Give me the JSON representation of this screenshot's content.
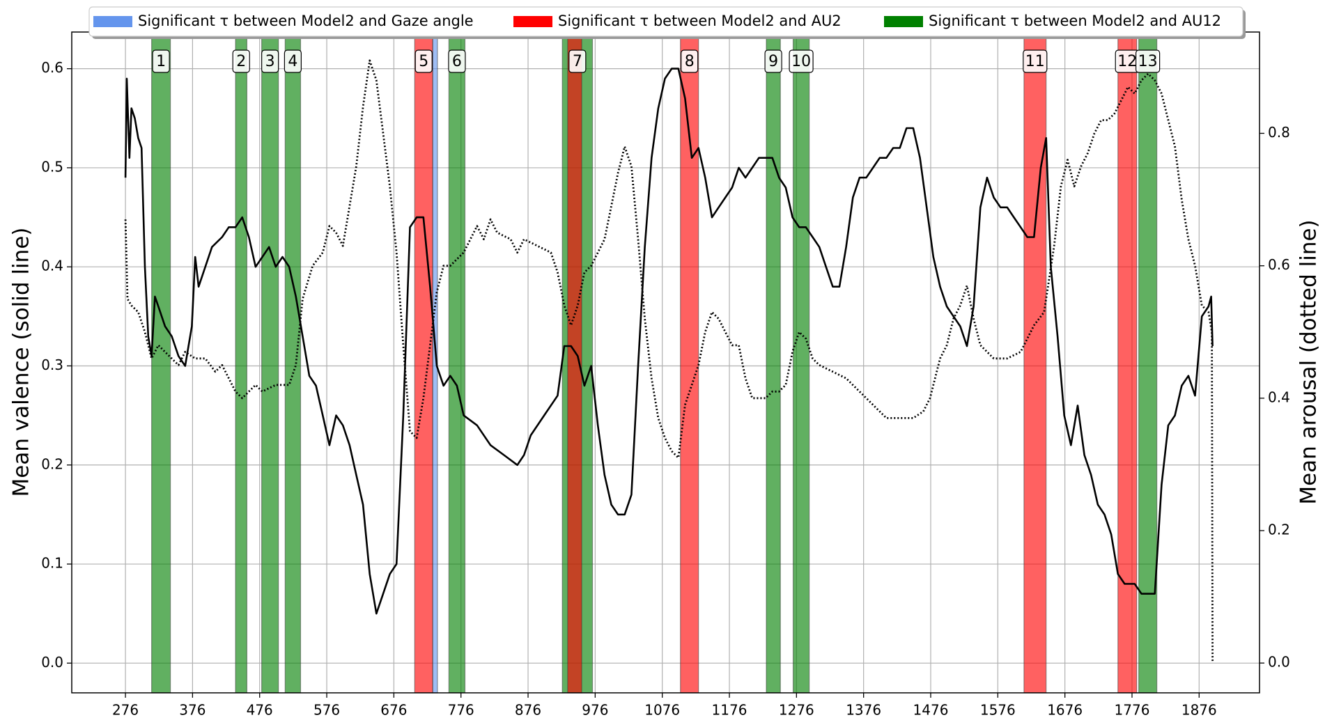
{
  "chart_data": {
    "type": "line",
    "ylabel": "Mean valence (solid line)",
    "y2label": "Mean arousal (dotted line)",
    "xlim": [
      196,
      1966
    ],
    "ylim": [
      -0.03,
      0.637
    ],
    "y2lim": [
      -0.045,
      0.953
    ],
    "xticks": [
      276,
      376,
      476,
      576,
      676,
      776,
      876,
      976,
      1076,
      1176,
      1276,
      1376,
      1476,
      1576,
      1676,
      1776,
      1876
    ],
    "yticks": [
      {
        "value": 0,
        "label": "0.0"
      },
      0.1,
      0.2,
      0.3,
      0.4,
      0.5,
      0.6
    ],
    "y2ticks": [
      {
        "value": 0,
        "label": "0.0"
      },
      0.2,
      0.4,
      0.6,
      0.8
    ],
    "grid": true,
    "legend": [
      {
        "name": "Significant τ between Model2 and Gaze angle",
        "color": "#6495ed"
      },
      {
        "name": "Significant τ between Model2 and AU2",
        "color": "#ff0000"
      },
      {
        "name": "Significant τ between Model2 and AU12",
        "color": "#008000"
      }
    ],
    "legend_position": "top",
    "regions": [
      {
        "label": "1",
        "start": 315,
        "end": 343,
        "color": "#008000"
      },
      {
        "label": "2",
        "start": 440,
        "end": 457,
        "color": "#008000"
      },
      {
        "label": "3",
        "start": 479,
        "end": 504,
        "color": "#008000"
      },
      {
        "label": "4",
        "start": 514,
        "end": 537,
        "color": "#008000"
      },
      {
        "label": "5",
        "start": 707,
        "end": 734,
        "color": "#ff0000"
      },
      {
        "start": 734,
        "end": 741,
        "color": "#6495ed"
      },
      {
        "label": "6",
        "start": 758,
        "end": 782,
        "color": "#008000"
      },
      {
        "label": "7",
        "start": 927,
        "end": 972,
        "color": "#008000"
      },
      {
        "start": 935,
        "end": 956,
        "color": "#ff0000"
      },
      {
        "label": "8",
        "start": 1103,
        "end": 1130,
        "color": "#ff0000"
      },
      {
        "label": "9",
        "start": 1231,
        "end": 1252,
        "color": "#008000"
      },
      {
        "label": "10",
        "start": 1271,
        "end": 1295,
        "color": "#008000"
      },
      {
        "label": "11",
        "start": 1615,
        "end": 1648,
        "color": "#ff0000"
      },
      {
        "label": "12",
        "start": 1755,
        "end": 1783,
        "color": "#ff0000"
      },
      {
        "label": "13",
        "start": 1786,
        "end": 1813,
        "color": "#008000"
      }
    ],
    "series": [
      {
        "name": "Mean valence",
        "color": "#000000",
        "linestyle": "solid",
        "x": [
          276,
          278,
          282,
          285,
          290,
          295,
          300,
          305,
          310,
          315,
          320,
          325,
          335,
          345,
          355,
          365,
          370,
          375,
          380,
          385,
          395,
          405,
          420,
          430,
          440,
          450,
          460,
          470,
          480,
          490,
          500,
          510,
          520,
          530,
          540,
          550,
          560,
          570,
          580,
          590,
          600,
          610,
          620,
          630,
          640,
          650,
          660,
          670,
          680,
          690,
          700,
          710,
          720,
          730,
          740,
          750,
          760,
          770,
          780,
          800,
          820,
          840,
          860,
          870,
          880,
          900,
          920,
          930,
          940,
          950,
          960,
          970,
          980,
          990,
          1000,
          1010,
          1020,
          1030,
          1040,
          1050,
          1060,
          1070,
          1080,
          1090,
          1100,
          1110,
          1120,
          1130,
          1140,
          1150,
          1160,
          1170,
          1180,
          1190,
          1200,
          1210,
          1220,
          1230,
          1240,
          1250,
          1260,
          1270,
          1280,
          1290,
          1300,
          1310,
          1320,
          1330,
          1340,
          1350,
          1360,
          1370,
          1380,
          1390,
          1400,
          1410,
          1420,
          1430,
          1440,
          1450,
          1460,
          1470,
          1480,
          1490,
          1500,
          1510,
          1520,
          1530,
          1540,
          1550,
          1560,
          1570,
          1580,
          1590,
          1600,
          1610,
          1620,
          1630,
          1640,
          1648,
          1655,
          1665,
          1675,
          1685,
          1695,
          1705,
          1715,
          1725,
          1735,
          1745,
          1755,
          1765,
          1780,
          1790,
          1800,
          1810,
          1820,
          1830,
          1840,
          1850,
          1860,
          1870,
          1880,
          1890,
          1894,
          1896
        ],
        "values": [
          0.49,
          0.59,
          0.51,
          0.56,
          0.55,
          0.53,
          0.52,
          0.4,
          0.33,
          0.31,
          0.37,
          0.36,
          0.34,
          0.33,
          0.31,
          0.3,
          0.32,
          0.34,
          0.41,
          0.38,
          0.4,
          0.42,
          0.43,
          0.44,
          0.44,
          0.45,
          0.43,
          0.4,
          0.41,
          0.42,
          0.4,
          0.41,
          0.4,
          0.37,
          0.33,
          0.29,
          0.28,
          0.25,
          0.22,
          0.25,
          0.24,
          0.22,
          0.19,
          0.16,
          0.09,
          0.05,
          0.07,
          0.09,
          0.1,
          0.25,
          0.44,
          0.45,
          0.45,
          0.38,
          0.3,
          0.28,
          0.29,
          0.28,
          0.25,
          0.24,
          0.22,
          0.21,
          0.2,
          0.21,
          0.23,
          0.25,
          0.27,
          0.32,
          0.32,
          0.31,
          0.28,
          0.3,
          0.24,
          0.19,
          0.16,
          0.15,
          0.15,
          0.17,
          0.3,
          0.42,
          0.51,
          0.56,
          0.59,
          0.6,
          0.6,
          0.57,
          0.51,
          0.52,
          0.49,
          0.45,
          0.46,
          0.47,
          0.48,
          0.5,
          0.49,
          0.5,
          0.51,
          0.51,
          0.51,
          0.49,
          0.48,
          0.45,
          0.44,
          0.44,
          0.43,
          0.42,
          0.4,
          0.38,
          0.38,
          0.42,
          0.47,
          0.49,
          0.49,
          0.5,
          0.51,
          0.51,
          0.52,
          0.52,
          0.54,
          0.54,
          0.51,
          0.46,
          0.41,
          0.38,
          0.36,
          0.35,
          0.34,
          0.32,
          0.36,
          0.46,
          0.49,
          0.47,
          0.46,
          0.46,
          0.45,
          0.44,
          0.43,
          0.43,
          0.5,
          0.53,
          0.4,
          0.33,
          0.25,
          0.22,
          0.26,
          0.21,
          0.19,
          0.16,
          0.15,
          0.13,
          0.09,
          0.08,
          0.08,
          0.07,
          0.07,
          0.07,
          0.18,
          0.24,
          0.25,
          0.28,
          0.29,
          0.27,
          0.35,
          0.36,
          0.37,
          0.32
        ]
      },
      {
        "name": "Mean arousal",
        "color": "#000000",
        "linestyle": "dotted",
        "axis": "y2",
        "x": [
          276,
          279,
          285,
          295,
          305,
          315,
          325,
          335,
          345,
          355,
          365,
          380,
          395,
          410,
          420,
          430,
          440,
          450,
          460,
          470,
          480,
          500,
          520,
          530,
          540,
          555,
          570,
          580,
          590,
          600,
          610,
          620,
          630,
          640,
          650,
          660,
          670,
          680,
          690,
          700,
          710,
          720,
          730,
          740,
          750,
          760,
          770,
          780,
          790,
          800,
          810,
          820,
          830,
          850,
          860,
          870,
          890,
          910,
          920,
          930,
          940,
          950,
          960,
          970,
          980,
          990,
          1000,
          1010,
          1020,
          1030,
          1040,
          1050,
          1060,
          1070,
          1080,
          1090,
          1100,
          1110,
          1120,
          1130,
          1140,
          1150,
          1160,
          1170,
          1180,
          1190,
          1200,
          1210,
          1220,
          1230,
          1240,
          1250,
          1260,
          1270,
          1280,
          1290,
          1300,
          1310,
          1330,
          1350,
          1370,
          1390,
          1410,
          1430,
          1450,
          1465,
          1475,
          1490,
          1500,
          1510,
          1520,
          1530,
          1540,
          1550,
          1570,
          1590,
          1610,
          1620,
          1630,
          1645,
          1660,
          1670,
          1680,
          1690,
          1700,
          1710,
          1720,
          1730,
          1740,
          1750,
          1760,
          1770,
          1780,
          1790,
          1800,
          1810,
          1820,
          1830,
          1840,
          1850,
          1860,
          1870,
          1880,
          1890,
          1895,
          1896
        ],
        "values": [
          0.67,
          0.55,
          0.54,
          0.53,
          0.5,
          0.46,
          0.48,
          0.47,
          0.46,
          0.45,
          0.47,
          0.46,
          0.46,
          0.44,
          0.45,
          0.43,
          0.41,
          0.4,
          0.41,
          0.42,
          0.41,
          0.42,
          0.42,
          0.45,
          0.55,
          0.6,
          0.62,
          0.66,
          0.65,
          0.63,
          0.69,
          0.75,
          0.84,
          0.91,
          0.88,
          0.8,
          0.72,
          0.62,
          0.48,
          0.35,
          0.34,
          0.4,
          0.48,
          0.56,
          0.6,
          0.6,
          0.61,
          0.62,
          0.64,
          0.66,
          0.64,
          0.67,
          0.65,
          0.64,
          0.62,
          0.64,
          0.63,
          0.62,
          0.59,
          0.54,
          0.51,
          0.54,
          0.59,
          0.6,
          0.62,
          0.64,
          0.69,
          0.74,
          0.78,
          0.75,
          0.64,
          0.52,
          0.43,
          0.37,
          0.34,
          0.32,
          0.31,
          0.39,
          0.42,
          0.45,
          0.5,
          0.53,
          0.52,
          0.5,
          0.48,
          0.48,
          0.43,
          0.4,
          0.4,
          0.4,
          0.41,
          0.41,
          0.42,
          0.47,
          0.5,
          0.49,
          0.46,
          0.45,
          0.44,
          0.43,
          0.41,
          0.39,
          0.37,
          0.37,
          0.37,
          0.38,
          0.4,
          0.46,
          0.48,
          0.52,
          0.54,
          0.57,
          0.52,
          0.48,
          0.46,
          0.46,
          0.47,
          0.49,
          0.51,
          0.53,
          0.63,
          0.72,
          0.76,
          0.72,
          0.75,
          0.77,
          0.8,
          0.82,
          0.82,
          0.83,
          0.85,
          0.87,
          0.86,
          0.88,
          0.89,
          0.88,
          0.86,
          0.82,
          0.78,
          0.7,
          0.64,
          0.6,
          0.54,
          0.53,
          0.5,
          0.0
        ]
      }
    ]
  }
}
